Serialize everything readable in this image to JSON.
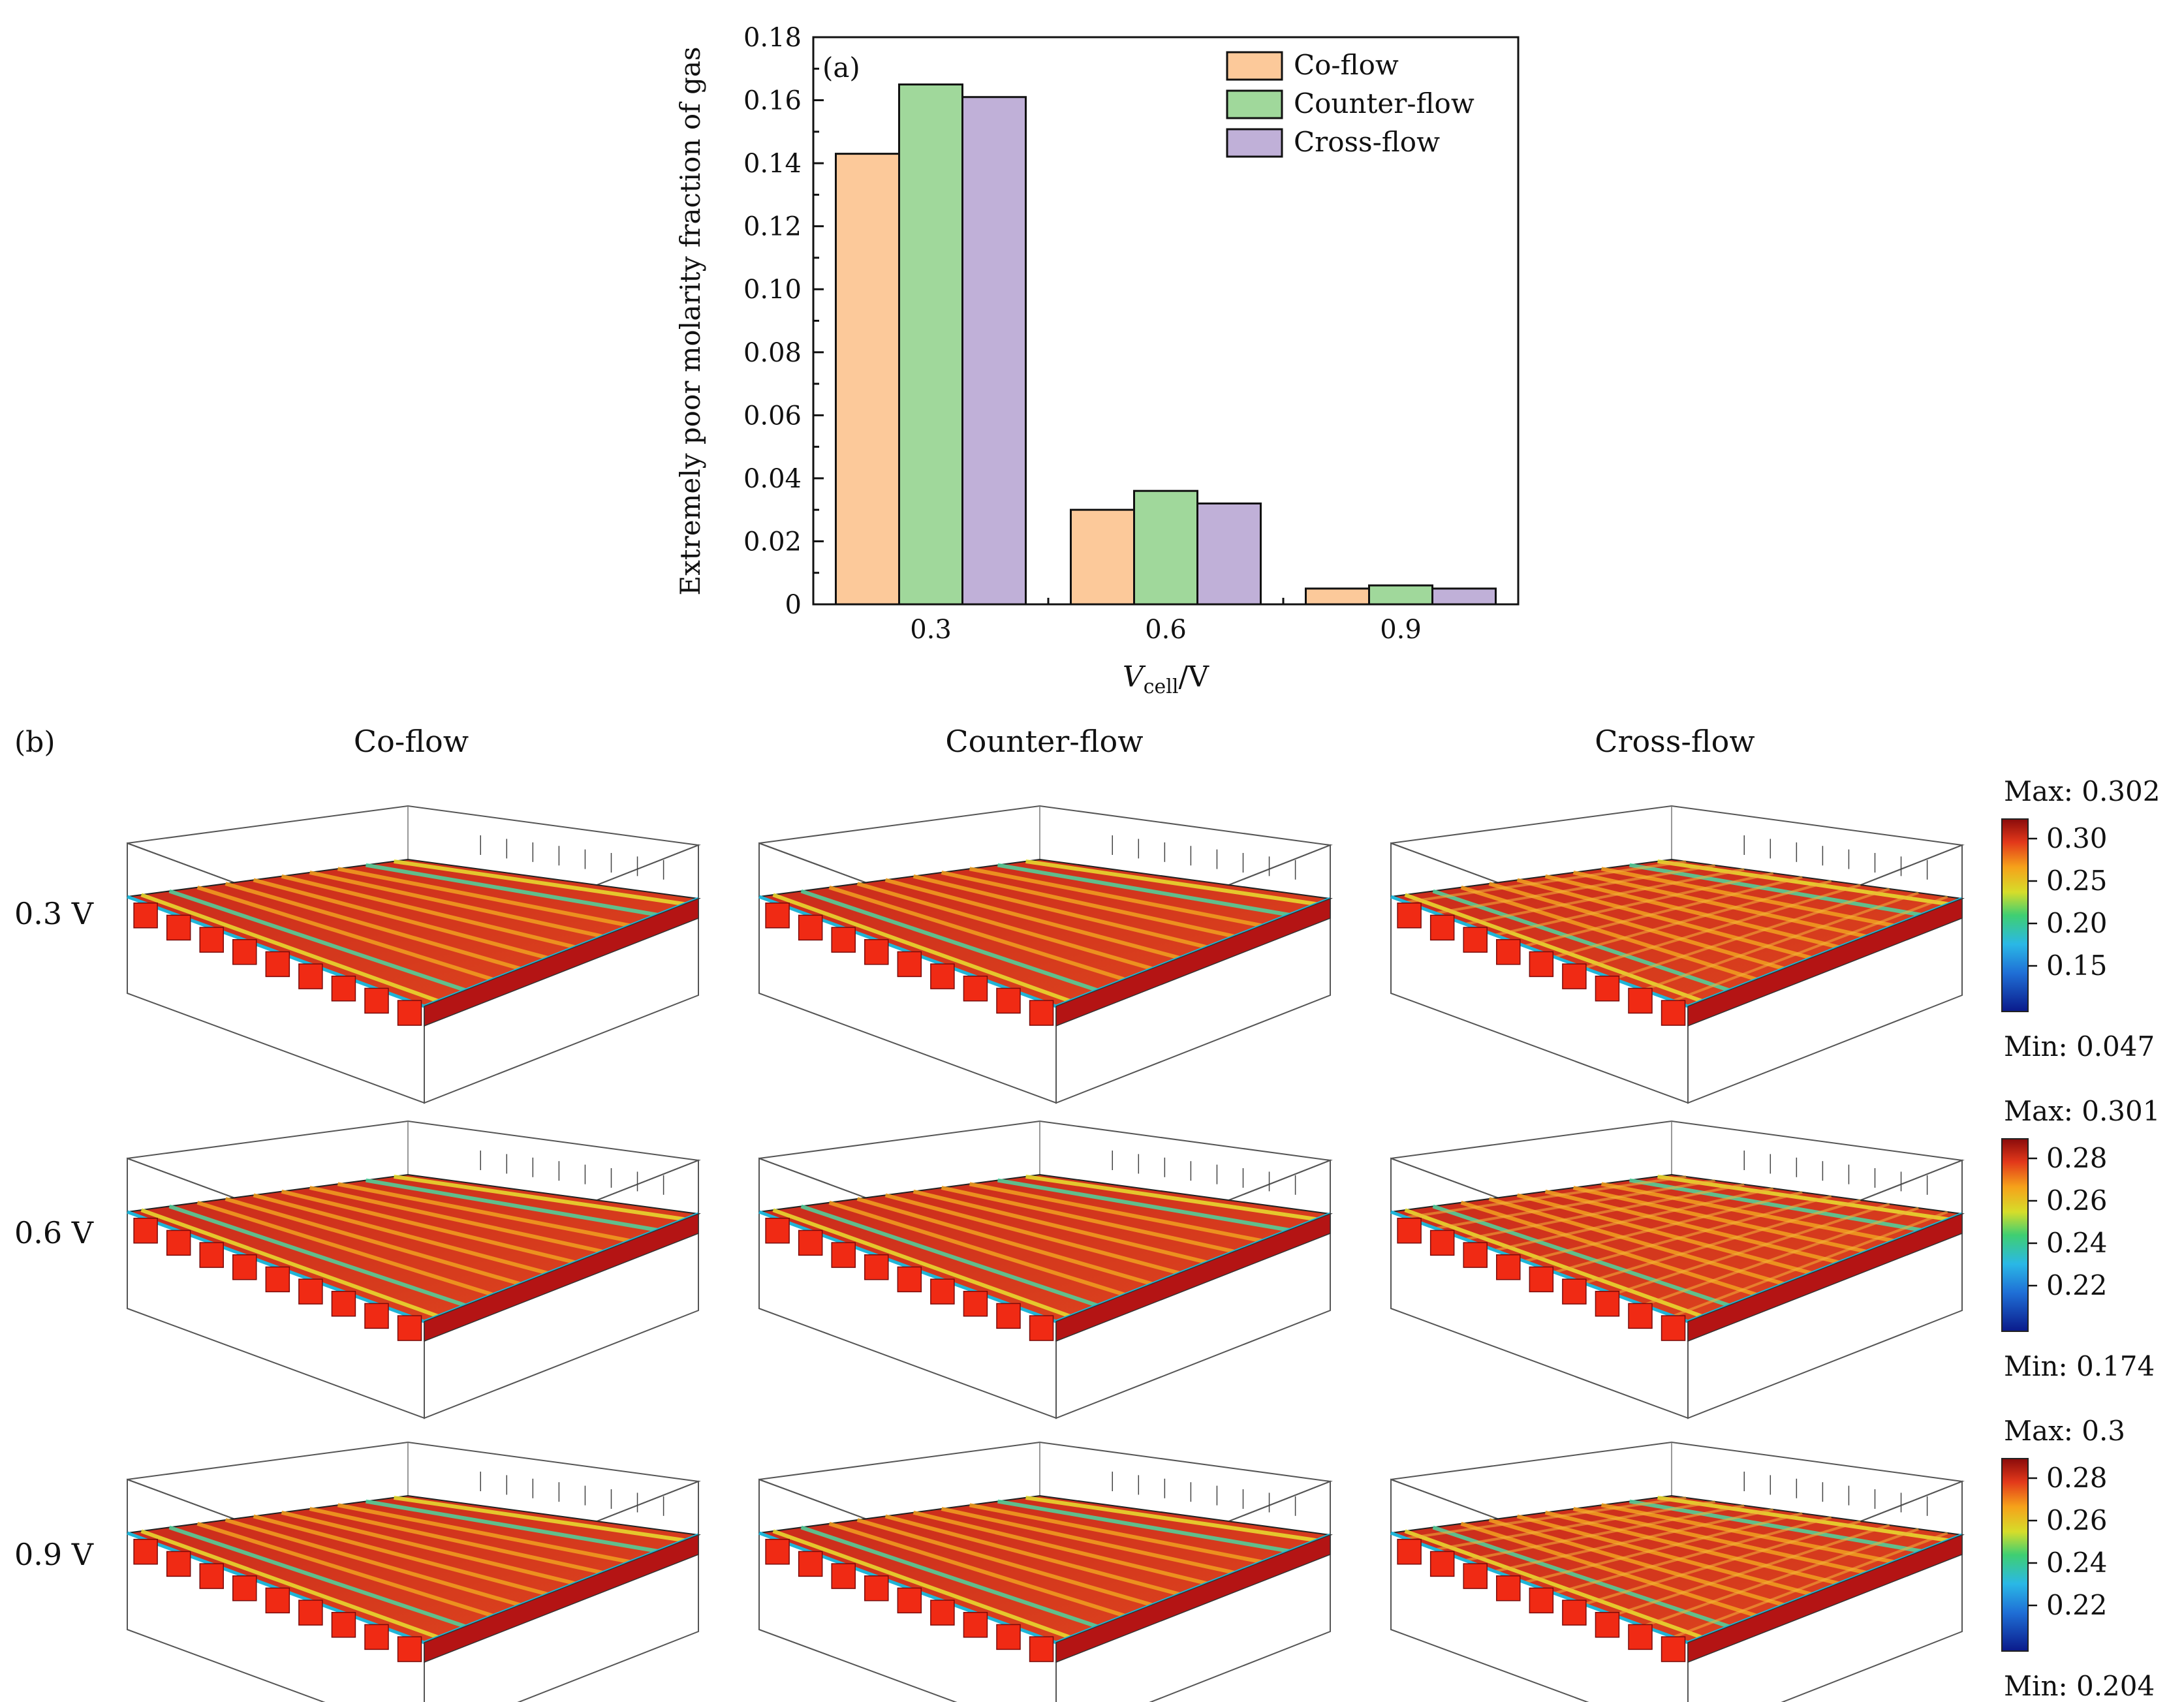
{
  "chart_data": [
    {
      "panel_label": "(a)",
      "type": "bar",
      "categories": [
        "0.3",
        "0.6",
        "0.9"
      ],
      "series": [
        {
          "name": "Co-flow",
          "values": [
            0.143,
            0.03,
            0.005
          ],
          "color": "#FCC99A"
        },
        {
          "name": "Counter-flow",
          "values": [
            0.165,
            0.036,
            0.006
          ],
          "color": "#A0D89B"
        },
        {
          "name": "Cross-flow",
          "values": [
            0.161,
            0.032,
            0.005
          ],
          "color": "#C0B0D8"
        }
      ],
      "ylabel": "Extremely poor molarity fraction of gas",
      "xlabel_main": "V",
      "xlabel_sub": "cell",
      "xlabel_unit": "/V",
      "ylim": [
        0,
        0.18
      ],
      "yticks": [
        "0",
        "0.02",
        "0.04",
        "0.06",
        "0.08",
        "0.10",
        "0.12",
        "0.14",
        "0.16",
        "0.18"
      ],
      "legend_position": "top-right"
    },
    {
      "panel_label": "(b)",
      "type": "heatmap",
      "columns": [
        "Co-flow",
        "Counter-flow",
        "Cross-flow"
      ],
      "rows": [
        {
          "label": "0.3 V",
          "max_label": "Max: 0.302",
          "min_label": "Min: 0.047",
          "colorbar_ticks": [
            "0.30",
            "0.25",
            "0.20",
            "0.15"
          ]
        },
        {
          "label": "0.6 V",
          "max_label": "Max: 0.301",
          "min_label": "Min: 0.174",
          "colorbar_ticks": [
            "0.28",
            "0.26",
            "0.24",
            "0.22"
          ]
        },
        {
          "label": "0.9 V",
          "max_label": "Max: 0.3",
          "min_label": "Min: 0.204",
          "colorbar_ticks": [
            "0.28",
            "0.26",
            "0.24",
            "0.22"
          ]
        }
      ]
    }
  ]
}
